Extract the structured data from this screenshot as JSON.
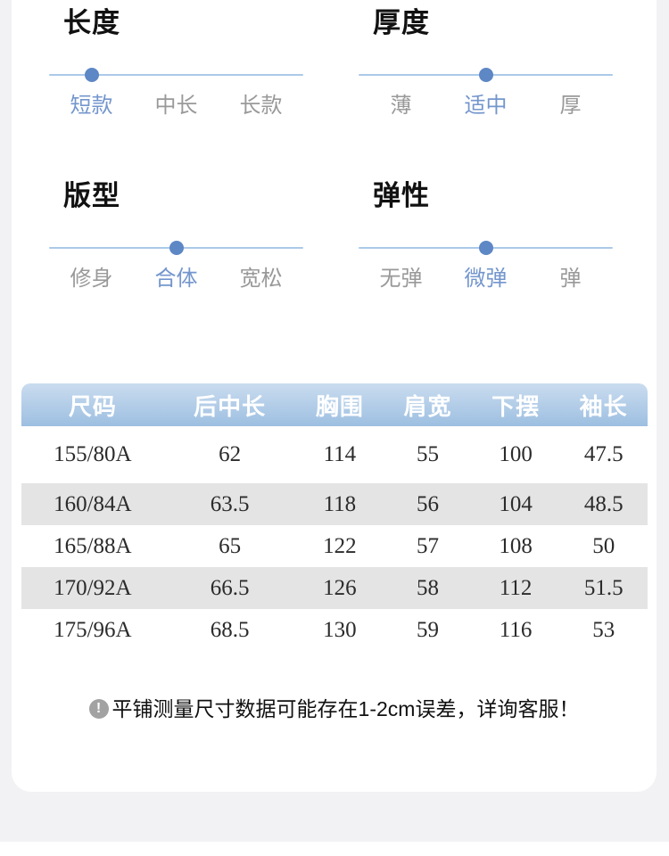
{
  "attributes": [
    {
      "id": "length",
      "title": "长度",
      "options": [
        "短款",
        "中长",
        "长款"
      ],
      "selected_index": 0
    },
    {
      "id": "thickness",
      "title": "厚度",
      "options": [
        "薄",
        "适中",
        "厚"
      ],
      "selected_index": 1
    },
    {
      "id": "fit",
      "title": "版型",
      "options": [
        "修身",
        "合体",
        "宽松"
      ],
      "selected_index": 1
    },
    {
      "id": "elasticity",
      "title": "弹性",
      "options": [
        "无弹",
        "微弹",
        "弹"
      ],
      "selected_index": 1
    }
  ],
  "size_table": {
    "headers": [
      "尺码",
      "后中长",
      "胸围",
      "肩宽",
      "下摆",
      "袖长"
    ],
    "rows": [
      [
        "155/80A",
        "62",
        "114",
        "55",
        "100",
        "47.5"
      ],
      [
        "160/84A",
        "63.5",
        "118",
        "56",
        "104",
        "48.5"
      ],
      [
        "165/88A",
        "65",
        "122",
        "57",
        "108",
        "50"
      ],
      [
        "170/92A",
        "66.5",
        "126",
        "58",
        "112",
        "51.5"
      ],
      [
        "175/96A",
        "68.5",
        "130",
        "59",
        "116",
        "53"
      ]
    ]
  },
  "note": {
    "icon": "exclamation-circle-icon",
    "icon_glyph": "!",
    "text": "平铺测量尺寸数据可能存在1-2cm误差，详询客服！"
  },
  "colors": {
    "accent_blue": "#7496cd",
    "slider_dot": "#5d87c5",
    "slider_track": "#abc9e8",
    "header_gradient_top": "#cadcef",
    "header_gradient_bottom": "#9dbfe1",
    "zebra_row": "#e4e4e5",
    "page_background": "#f2f2f4"
  }
}
